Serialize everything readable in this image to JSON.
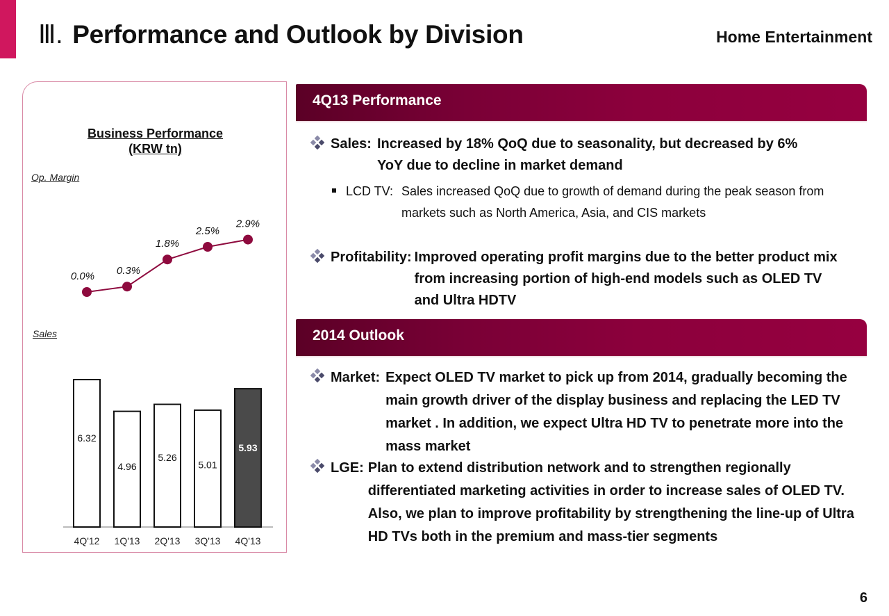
{
  "header": {
    "section_number": "Ⅲ.",
    "title": "Performance and Outlook by Division",
    "division": "Home Entertainment"
  },
  "chart_panel": {
    "title_line1": "Business Performance",
    "title_line2": "(KRW tn)",
    "op_margin_label": "Op. Margin",
    "sales_label": "Sales"
  },
  "chart_data": [
    {
      "type": "line",
      "title": "Op. Margin",
      "categories": [
        "4Q'12",
        "1Q'13",
        "2Q'13",
        "3Q'13",
        "4Q'13"
      ],
      "values": [
        0.0,
        0.3,
        1.8,
        2.5,
        2.9
      ],
      "value_labels": [
        "0.0%",
        "0.3%",
        "1.8%",
        "2.5%",
        "2.9%"
      ],
      "unit": "%",
      "color": "#8e0a3e",
      "grid": false
    },
    {
      "type": "bar",
      "title": "Sales",
      "categories": [
        "4Q'12",
        "1Q'13",
        "2Q'13",
        "3Q'13",
        "4Q'13"
      ],
      "values": [
        6.32,
        4.96,
        5.26,
        5.01,
        5.93
      ],
      "value_labels": [
        "6.32",
        "4.96",
        "5.26",
        "5.01",
        "5.93"
      ],
      "unit": "KRW tn",
      "highlight_index": 4,
      "colors": {
        "default": "#ffffff",
        "highlight": "#4a4a4a"
      },
      "ylim": [
        0,
        6.5
      ],
      "grid": false
    }
  ],
  "performance": {
    "header": "4Q13 Performance",
    "sales_lead": "Sales:",
    "sales_text": "Increased by 18% QoQ due to seasonality, but  decreased by 6% YoY due to decline in market demand",
    "lcd_lead": "LCD TV:",
    "lcd_text": "Sales increased QoQ due to growth of demand during the peak season from markets such as North America, Asia, and CIS markets",
    "profit_lead": "Profitability:",
    "profit_text": "Improved operating profit margins due to the better product mix from increasing portion of high-end models such as OLED TV and Ultra HDTV"
  },
  "outlook": {
    "header": "2014 Outlook",
    "market_lead": "Market:",
    "market_text": "Expect OLED TV market to pick up from 2014, gradually becoming the main growth driver of the display business and replacing the LED TV market . In addition, we expect Ultra HD TV to penetrate more into the mass market",
    "lge_lead": "LGE:",
    "lge_text": "Plan to extend distribution network and to strengthen regionally differentiated marketing activities in order to increase sales of OLED TV. Also, we plan to improve profitability by strengthening the line-up of Ultra HD TVs both in the premium and mass-tier segments"
  },
  "page_number": "6"
}
